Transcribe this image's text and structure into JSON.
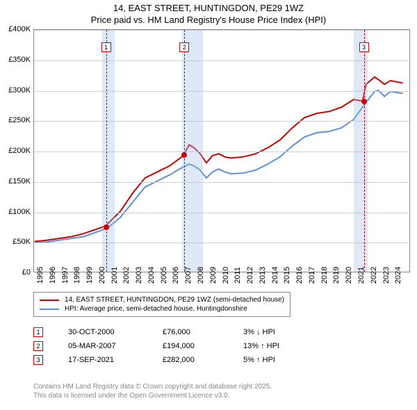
{
  "title_line1": "14, EAST STREET, HUNTINGDON, PE29 1WZ",
  "title_line2": "Price paid vs. HM Land Registry's House Price Index (HPI)",
  "chart": {
    "type": "line",
    "x_year_min": 1995,
    "x_year_max": 2025.5,
    "ylim": [
      0,
      400000
    ],
    "ytick_step": 50000,
    "y_labels": [
      "£0",
      "£50K",
      "£100K",
      "£150K",
      "£200K",
      "£250K",
      "£300K",
      "£350K",
      "£400K"
    ],
    "x_years": [
      1995,
      1996,
      1997,
      1998,
      1999,
      2000,
      2001,
      2002,
      2003,
      2004,
      2005,
      2006,
      2007,
      2008,
      2009,
      2010,
      2011,
      2012,
      2013,
      2014,
      2015,
      2016,
      2017,
      2018,
      2019,
      2020,
      2021,
      2022,
      2023,
      2024
    ],
    "background_color": "#ffffff",
    "grid_color": "#d0d0d0",
    "shaded_bands": [
      {
        "start": 2000.5,
        "end": 2001.5
      },
      {
        "start": 2007.0,
        "end": 2008.7
      },
      {
        "start": 2020.9,
        "end": 2022.0
      }
    ],
    "series": [
      {
        "name": "14, EAST STREET, HUNTINGDON, PE29 1WZ (semi-detached house)",
        "color": "#cc0000",
        "width": 2,
        "data": [
          [
            1995,
            50000
          ],
          [
            1996,
            52000
          ],
          [
            1997,
            55000
          ],
          [
            1998,
            58000
          ],
          [
            1999,
            63000
          ],
          [
            2000,
            70000
          ],
          [
            2000.83,
            76000
          ],
          [
            2001,
            80000
          ],
          [
            2002,
            100000
          ],
          [
            2003,
            130000
          ],
          [
            2004,
            155000
          ],
          [
            2005,
            165000
          ],
          [
            2006,
            175000
          ],
          [
            2007,
            190000
          ],
          [
            2007.18,
            194000
          ],
          [
            2007.6,
            210000
          ],
          [
            2008,
            205000
          ],
          [
            2008.5,
            195000
          ],
          [
            2009,
            180000
          ],
          [
            2009.5,
            192000
          ],
          [
            2010,
            195000
          ],
          [
            2010.5,
            190000
          ],
          [
            2011,
            188000
          ],
          [
            2012,
            190000
          ],
          [
            2013,
            195000
          ],
          [
            2014,
            205000
          ],
          [
            2015,
            218000
          ],
          [
            2016,
            238000
          ],
          [
            2017,
            255000
          ],
          [
            2018,
            262000
          ],
          [
            2019,
            265000
          ],
          [
            2020,
            272000
          ],
          [
            2021,
            285000
          ],
          [
            2021.71,
            282000
          ],
          [
            2022,
            310000
          ],
          [
            2022.7,
            322000
          ],
          [
            2023,
            318000
          ],
          [
            2023.5,
            310000
          ],
          [
            2024,
            316000
          ],
          [
            2025,
            312000
          ]
        ]
      },
      {
        "name": "HPI: Average price, semi-detached house, Huntingdonshire",
        "color": "#5b8fd6",
        "width": 2,
        "data": [
          [
            1995,
            48000
          ],
          [
            1996,
            49000
          ],
          [
            1997,
            52000
          ],
          [
            1998,
            55000
          ],
          [
            1999,
            58000
          ],
          [
            2000,
            65000
          ],
          [
            2001,
            73000
          ],
          [
            2002,
            90000
          ],
          [
            2003,
            115000
          ],
          [
            2004,
            140000
          ],
          [
            2005,
            150000
          ],
          [
            2006,
            160000
          ],
          [
            2007,
            172000
          ],
          [
            2007.6,
            178000
          ],
          [
            2008,
            175000
          ],
          [
            2008.5,
            168000
          ],
          [
            2009,
            155000
          ],
          [
            2009.5,
            165000
          ],
          [
            2010,
            170000
          ],
          [
            2010.5,
            165000
          ],
          [
            2011,
            162000
          ],
          [
            2012,
            163000
          ],
          [
            2013,
            168000
          ],
          [
            2014,
            178000
          ],
          [
            2015,
            190000
          ],
          [
            2016,
            208000
          ],
          [
            2017,
            223000
          ],
          [
            2018,
            230000
          ],
          [
            2019,
            232000
          ],
          [
            2020,
            238000
          ],
          [
            2021,
            252000
          ],
          [
            2022,
            280000
          ],
          [
            2022.7,
            298000
          ],
          [
            2023,
            300000
          ],
          [
            2023.5,
            290000
          ],
          [
            2024,
            298000
          ],
          [
            2025,
            295000
          ]
        ]
      }
    ],
    "events": [
      {
        "n": "1",
        "year": 2000.83,
        "date": "30-OCT-2000",
        "price": "£76,000",
        "rel": "3% ↓ HPI",
        "price_val": 76000
      },
      {
        "n": "2",
        "year": 2007.18,
        "date": "05-MAR-2007",
        "price": "£194,000",
        "rel": "13% ↑ HPI",
        "price_val": 194000
      },
      {
        "n": "3",
        "year": 2021.71,
        "date": "17-SEP-2021",
        "price": "£282,000",
        "rel": "5% ↑ HPI",
        "price_val": 282000
      }
    ],
    "marker_color": "#cc0000",
    "marker_size": 8
  },
  "legend_items": [
    {
      "color": "#cc0000",
      "label": "14, EAST STREET, HUNTINGDON, PE29 1WZ (semi-detached house)"
    },
    {
      "color": "#5b8fd6",
      "label": "HPI: Average price, semi-detached house, Huntingdonshire"
    }
  ],
  "attribution_line1": "Contains HM Land Registry data © Crown copyright and database right 2025.",
  "attribution_line2": "This data is licensed under the Open Government Licence v3.0."
}
